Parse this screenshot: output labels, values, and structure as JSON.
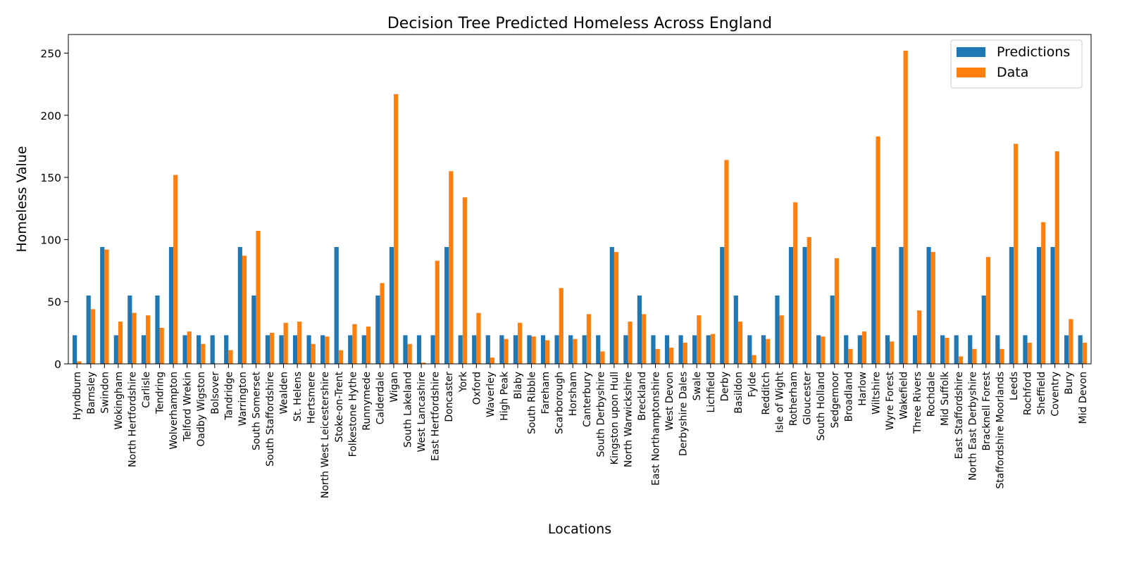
{
  "chart_data": {
    "type": "bar",
    "title": "Decision Tree Predicted Homeless Across England",
    "xlabel": "Locations",
    "ylabel": "Homeless Value",
    "ylim": [
      0,
      265
    ],
    "yticks": [
      0,
      50,
      100,
      150,
      200,
      250
    ],
    "legend_position": "top-right",
    "grid": false,
    "categories": [
      "Hyndburn",
      "Barnsley",
      "Swindon",
      "Wokingham",
      "North Hertfordshire",
      "Carlisle",
      "Tendring",
      "Wolverhampton",
      "Telford Wrekin",
      "Oadby Wigston",
      "Bolsover",
      "Tandridge",
      "Warrington",
      "South Somerset",
      "South Staffordshire",
      "Wealden",
      "St. Helens",
      "Hertsmere",
      "North West Leicestershire",
      "Stoke-on-Trent",
      "Folkestone Hythe",
      "Runnymede",
      "Calderdale",
      "Wigan",
      "South Lakeland",
      "West Lancashire",
      "East Hertfordshire",
      "Doncaster",
      "York",
      "Oxford",
      "Waverley",
      "High Peak",
      "Blaby",
      "South Ribble",
      "Fareham",
      "Scarborough",
      "Horsham",
      "Canterbury",
      "South Derbyshire",
      "Kingston upon Hull",
      "North Warwickshire",
      "Breckland",
      "East Northamptonshire",
      "West Devon",
      "Derbyshire Dales",
      "Swale",
      "Lichfield",
      "Derby",
      "Basildon",
      "Fylde",
      "Redditch",
      "Isle of Wight",
      "Rotherham",
      "Gloucester",
      "South Holland",
      "Sedgemoor",
      "Broadland",
      "Harlow",
      "Wiltshire",
      "Wyre Forest",
      "Wakefield",
      "Three Rivers",
      "Rochdale",
      "Mid Suffolk",
      "East Staffordshire",
      "North East Derbyshire",
      "Bracknell Forest",
      "Staffordshire Moorlands",
      "Leeds",
      "Rochford",
      "Sheffield",
      "Coventry",
      "Bury",
      "Mid Devon"
    ],
    "series": [
      {
        "name": "Predictions",
        "color": "#1f77b4",
        "values": [
          23,
          55,
          94,
          23,
          55,
          23,
          55,
          94,
          23,
          23,
          23,
          23,
          94,
          55,
          23,
          23,
          23,
          23,
          23,
          94,
          23,
          23,
          55,
          94,
          23,
          23,
          23,
          94,
          23,
          23,
          23,
          23,
          23,
          23,
          23,
          23,
          23,
          23,
          23,
          94,
          23,
          55,
          23,
          23,
          23,
          23,
          23,
          94,
          55,
          23,
          23,
          55,
          94,
          94,
          23,
          55,
          23,
          23,
          94,
          23,
          94,
          23,
          94,
          23,
          23,
          23,
          55,
          23,
          94,
          23,
          94,
          94,
          23,
          23
        ]
      },
      {
        "name": "Data",
        "color": "#ff7f0e",
        "values": [
          2,
          44,
          92,
          34,
          41,
          39,
          29,
          152,
          26,
          16,
          0,
          11,
          87,
          107,
          25,
          33,
          34,
          16,
          22,
          11,
          32,
          30,
          65,
          217,
          16,
          1,
          83,
          155,
          134,
          41,
          5,
          20,
          33,
          22,
          19,
          61,
          20,
          40,
          10,
          90,
          34,
          40,
          12,
          13,
          17,
          39,
          24,
          164,
          34,
          7,
          20,
          39,
          130,
          102,
          22,
          85,
          12,
          26,
          183,
          18,
          252,
          43,
          90,
          21,
          6,
          12,
          86,
          12,
          177,
          17,
          114,
          171,
          36,
          17
        ]
      }
    ]
  }
}
